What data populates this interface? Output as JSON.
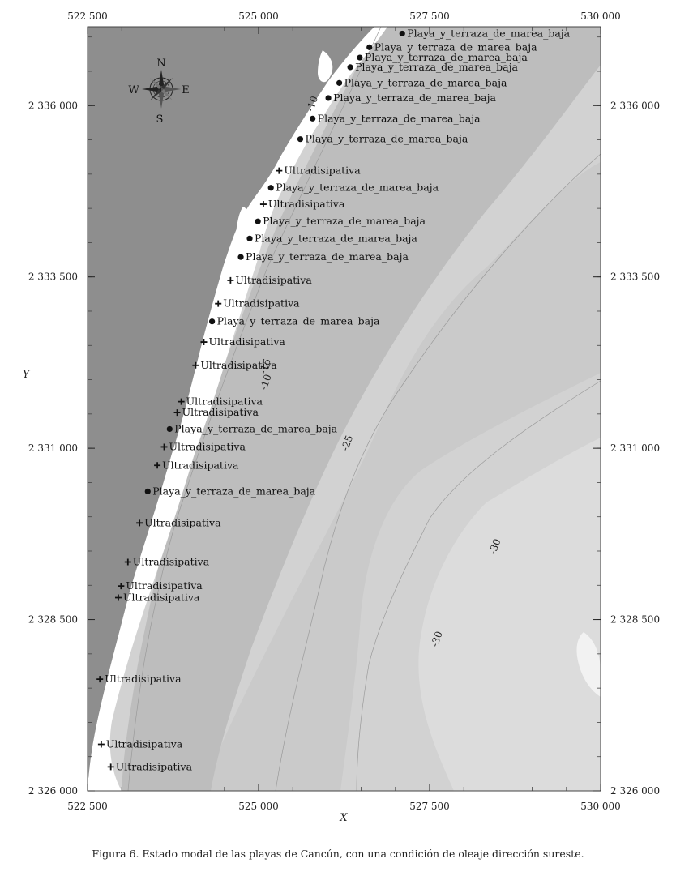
{
  "map": {
    "x_axis": {
      "label": "X",
      "range": [
        522500,
        530000
      ],
      "ticks": [
        {
          "value": 522500,
          "label": "522 500"
        },
        {
          "value": 525000,
          "label": "525 000"
        },
        {
          "value": 527500,
          "label": "527 500"
        },
        {
          "value": 530000,
          "label": "530 000"
        }
      ]
    },
    "y_axis": {
      "label": "Y",
      "range": [
        2326000,
        2337150
      ],
      "ticks": [
        {
          "value": 2326000,
          "label": "2 326 000"
        },
        {
          "value": 2328500,
          "label": "2 328 500"
        },
        {
          "value": 2331000,
          "label": "2 331 000"
        },
        {
          "value": 2333500,
          "label": "2 333 500"
        },
        {
          "value": 2336000,
          "label": "2 336 000"
        }
      ]
    },
    "compass": {
      "n": "N",
      "s": "S",
      "e": "E",
      "w": "W"
    },
    "contours": [
      {
        "label": "-10",
        "x": 525150,
        "y": 2331950
      },
      {
        "label": "-10",
        "x": 525830,
        "y": 2336010
      },
      {
        "label": "-15",
        "x": 525140,
        "y": 2332180
      },
      {
        "label": "-25",
        "x": 526340,
        "y": 2331060
      },
      {
        "label": "-30",
        "x": 527650,
        "y": 2328200
      },
      {
        "label": "-30",
        "x": 528500,
        "y": 2329550
      }
    ],
    "sites": [
      {
        "label": "Playa_y_terraza_de_marea_baja",
        "type": "dot",
        "x": 527100,
        "y": 2337050
      },
      {
        "label": "Playa_y_terraza_de_marea_baja",
        "type": "dot",
        "x": 526620,
        "y": 2336850
      },
      {
        "label": "Playa_y_terraza_de_marea_baja",
        "type": "dot",
        "x": 526480,
        "y": 2336700
      },
      {
        "label": "Playa_y_terraza_de_marea_baja",
        "type": "dot",
        "x": 526340,
        "y": 2336560
      },
      {
        "label": "Playa_y_terraza_de_marea_baja",
        "type": "dot",
        "x": 526180,
        "y": 2336330
      },
      {
        "label": "Playa_y_terraza_de_marea_baja",
        "type": "dot",
        "x": 526020,
        "y": 2336110
      },
      {
        "label": "Playa_y_terraza_de_marea_baja",
        "type": "dot",
        "x": 525790,
        "y": 2335810
      },
      {
        "label": "Playa_y_terraza_de_marea_baja",
        "type": "dot",
        "x": 525610,
        "y": 2335510
      },
      {
        "label": "Ultradisipativa",
        "type": "cross",
        "x": 525300,
        "y": 2335050
      },
      {
        "label": "Playa_y_terraza_de_marea_baja",
        "type": "dot",
        "x": 525180,
        "y": 2334800
      },
      {
        "label": "Ultradisipativa",
        "type": "cross",
        "x": 525070,
        "y": 2334560
      },
      {
        "label": "Playa_y_terraza_de_marea_baja",
        "type": "dot",
        "x": 524990,
        "y": 2334310
      },
      {
        "label": "Playa_y_terraza_de_marea_baja",
        "type": "dot",
        "x": 524870,
        "y": 2334060
      },
      {
        "label": "Playa_y_terraza_de_marea_baja",
        "type": "dot",
        "x": 524740,
        "y": 2333790
      },
      {
        "label": "Ultradisipativa",
        "type": "cross",
        "x": 524590,
        "y": 2333450
      },
      {
        "label": "Ultradisipativa",
        "type": "cross",
        "x": 524410,
        "y": 2333110
      },
      {
        "label": "Playa_y_terraza_de_marea_baja",
        "type": "dot",
        "x": 524320,
        "y": 2332850
      },
      {
        "label": "Ultradisipativa",
        "type": "cross",
        "x": 524200,
        "y": 2332550
      },
      {
        "label": "Ultradisipativa",
        "type": "cross",
        "x": 524080,
        "y": 2332210
      },
      {
        "label": "Ultradisipativa",
        "type": "cross",
        "x": 523870,
        "y": 2331680
      },
      {
        "label": "Ultradisipativa",
        "type": "cross",
        "x": 523810,
        "y": 2331520
      },
      {
        "label": "Playa_y_terraza_de_marea_baja",
        "type": "dot",
        "x": 523700,
        "y": 2331280
      },
      {
        "label": "Ultradisipativa",
        "type": "cross",
        "x": 523620,
        "y": 2331020
      },
      {
        "label": "Ultradisipativa",
        "type": "cross",
        "x": 523520,
        "y": 2330750
      },
      {
        "label": "Playa_y_terraza_de_marea_baja",
        "type": "dot",
        "x": 523380,
        "y": 2330370
      },
      {
        "label": "Ultradisipativa",
        "type": "cross",
        "x": 523260,
        "y": 2329910
      },
      {
        "label": "Ultradisipativa",
        "type": "cross",
        "x": 523090,
        "y": 2329340
      },
      {
        "label": "Ultradisipativa",
        "type": "cross",
        "x": 522990,
        "y": 2328990
      },
      {
        "label": "Ultradisipativa",
        "type": "cross",
        "x": 522950,
        "y": 2328820
      },
      {
        "label": "Ultradisipativa",
        "type": "cross",
        "x": 522680,
        "y": 2327630
      },
      {
        "label": "Ultradisipativa",
        "type": "cross",
        "x": 522700,
        "y": 2326680
      },
      {
        "label": "Ultradisipativa",
        "type": "cross",
        "x": 522840,
        "y": 2326350
      }
    ],
    "colors": {
      "land": "#8e8e8e",
      "beach": "#ffffff",
      "shallow": "#b5b5b5",
      "mid": "#c2c2c2",
      "mid2": "#cbcbcb",
      "deep": "#d4d4d4",
      "deepest": "#dcdcdc"
    }
  },
  "caption": "Figura 6. Estado modal de las playas de Cancún, con una condición de oleaje dirección sureste."
}
